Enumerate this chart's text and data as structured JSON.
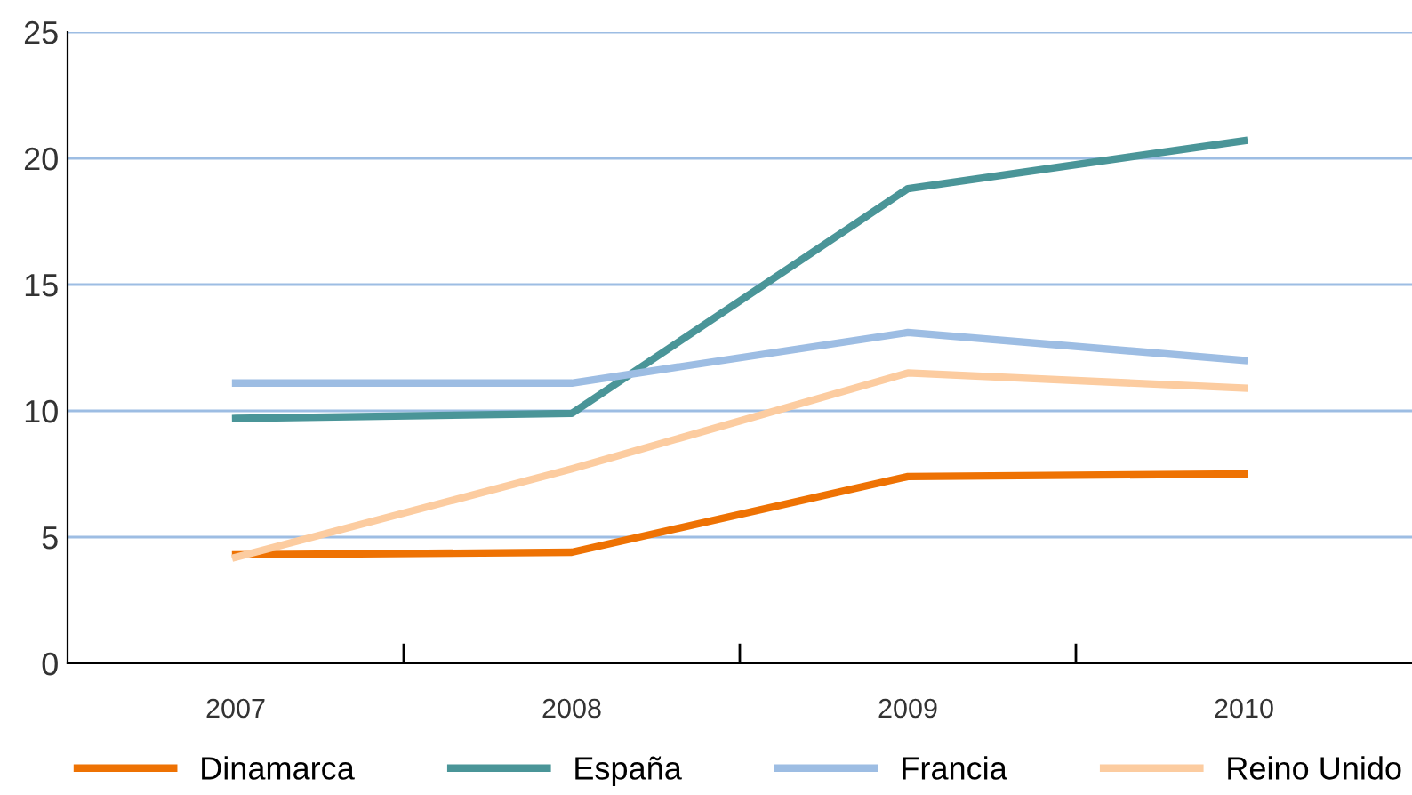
{
  "chart_data": {
    "type": "line",
    "categories": [
      "2007",
      "2008",
      "2009",
      "2010"
    ],
    "series": [
      {
        "name": "Dinamarca",
        "color": "#ee7203",
        "values": [
          4.3,
          4.4,
          7.4,
          7.5
        ]
      },
      {
        "name": "España",
        "color": "#4a9598",
        "values": [
          9.7,
          9.9,
          18.8,
          20.7
        ]
      },
      {
        "name": "Francia",
        "color": "#9dbde3",
        "values": [
          11.1,
          11.1,
          13.1,
          12.0
        ]
      },
      {
        "name": "Reino Unido",
        "color": "#fccca0",
        "values": [
          4.2,
          7.7,
          11.5,
          10.9
        ]
      }
    ],
    "ylim": [
      0,
      25
    ],
    "yticks": [
      0,
      5,
      10,
      15,
      20,
      25
    ],
    "grid": "y",
    "legend": "bottom",
    "marker": "none",
    "line_style": "solid"
  }
}
